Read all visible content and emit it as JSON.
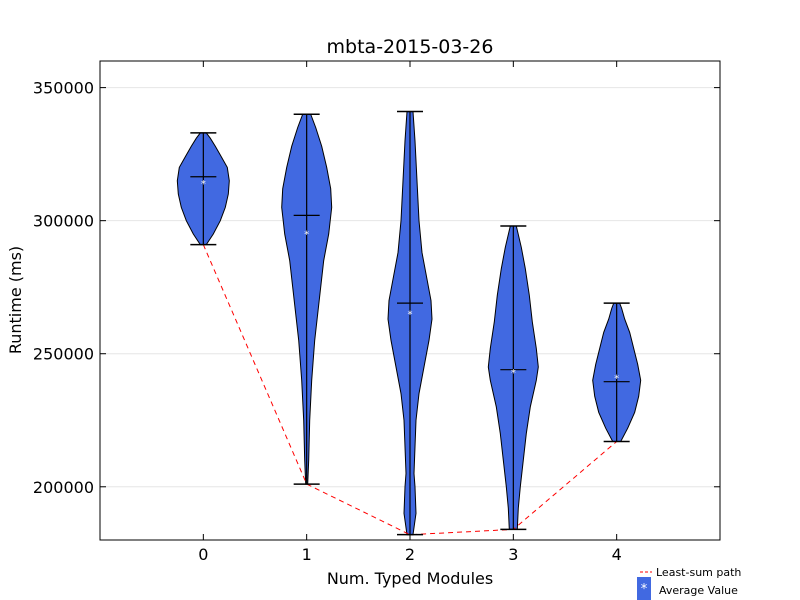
{
  "chart_data": {
    "type": "violin",
    "title": "mbta-2015-03-26",
    "xlabel": "Num. Typed Modules",
    "ylabel": "Runtime (ms)",
    "xlim": [
      -1,
      5
    ],
    "ylim": [
      180000,
      360000
    ],
    "x_ticks": [
      0,
      1,
      2,
      3,
      4
    ],
    "x_tick_labels": [
      "0",
      "1",
      "2",
      "3",
      "4"
    ],
    "y_ticks": [
      200000,
      250000,
      300000,
      350000
    ],
    "y_tick_labels": [
      "200000",
      "250000",
      "300000",
      "350000"
    ],
    "grid": "horizontal",
    "violin_color": "#4169e1",
    "path_color": "#ff0000",
    "violins": [
      {
        "x": 0,
        "min": 291000,
        "max": 333000,
        "median": 316500,
        "mean": 314500,
        "profile": [
          [
            291000,
            3
          ],
          [
            295000,
            10
          ],
          [
            300000,
            17
          ],
          [
            305000,
            22
          ],
          [
            310000,
            25
          ],
          [
            315000,
            26
          ],
          [
            320000,
            24
          ],
          [
            324000,
            18
          ],
          [
            328000,
            12
          ],
          [
            331000,
            7
          ],
          [
            333000,
            3
          ]
        ]
      },
      {
        "x": 1,
        "min": 201000,
        "max": 340000,
        "median": 302000,
        "mean": 295500,
        "profile": [
          [
            201000,
            1
          ],
          [
            210000,
            2
          ],
          [
            225000,
            3
          ],
          [
            240000,
            5
          ],
          [
            255000,
            8
          ],
          [
            265000,
            11
          ],
          [
            275000,
            14
          ],
          [
            285000,
            17
          ],
          [
            295000,
            22
          ],
          [
            305000,
            25
          ],
          [
            312000,
            24
          ],
          [
            320000,
            20
          ],
          [
            328000,
            15
          ],
          [
            335000,
            9
          ],
          [
            340000,
            4
          ]
        ]
      },
      {
        "x": 2,
        "min": 182000,
        "max": 341000,
        "median": 269000,
        "mean": 265500,
        "profile": [
          [
            182000,
            3
          ],
          [
            190000,
            6
          ],
          [
            200000,
            5
          ],
          [
            205000,
            4
          ],
          [
            215000,
            5
          ],
          [
            225000,
            6
          ],
          [
            235000,
            9
          ],
          [
            245000,
            14
          ],
          [
            255000,
            19
          ],
          [
            263000,
            22
          ],
          [
            270000,
            21
          ],
          [
            278000,
            17
          ],
          [
            288000,
            12
          ],
          [
            300000,
            9
          ],
          [
            315000,
            7
          ],
          [
            330000,
            5
          ],
          [
            341000,
            3
          ]
        ]
      },
      {
        "x": 3,
        "min": 184000,
        "max": 298000,
        "median": 244000,
        "mean": 243500,
        "profile": [
          [
            184000,
            4
          ],
          [
            192000,
            5
          ],
          [
            200000,
            7
          ],
          [
            210000,
            10
          ],
          [
            220000,
            13
          ],
          [
            230000,
            17
          ],
          [
            240000,
            23
          ],
          [
            245000,
            25
          ],
          [
            252000,
            23
          ],
          [
            262000,
            19
          ],
          [
            272000,
            16
          ],
          [
            282000,
            12
          ],
          [
            290000,
            8
          ],
          [
            298000,
            3
          ]
        ]
      },
      {
        "x": 4,
        "min": 217000,
        "max": 269000,
        "median": 239500,
        "mean": 241500,
        "profile": [
          [
            217000,
            4
          ],
          [
            222000,
            11
          ],
          [
            228000,
            18
          ],
          [
            234000,
            22
          ],
          [
            240000,
            24
          ],
          [
            246000,
            21
          ],
          [
            252000,
            17
          ],
          [
            258000,
            13
          ],
          [
            263000,
            8
          ],
          [
            267000,
            5
          ],
          [
            269000,
            3
          ]
        ]
      }
    ],
    "least_sum_path": {
      "x": [
        0,
        1,
        2,
        3,
        4
      ],
      "y": [
        291000,
        201000,
        182000,
        184000,
        217000
      ]
    },
    "legend": {
      "position": "bottom-right",
      "path_label": "Least-sum path",
      "mean_label": "Average Value",
      "mean_marker": "*"
    }
  }
}
